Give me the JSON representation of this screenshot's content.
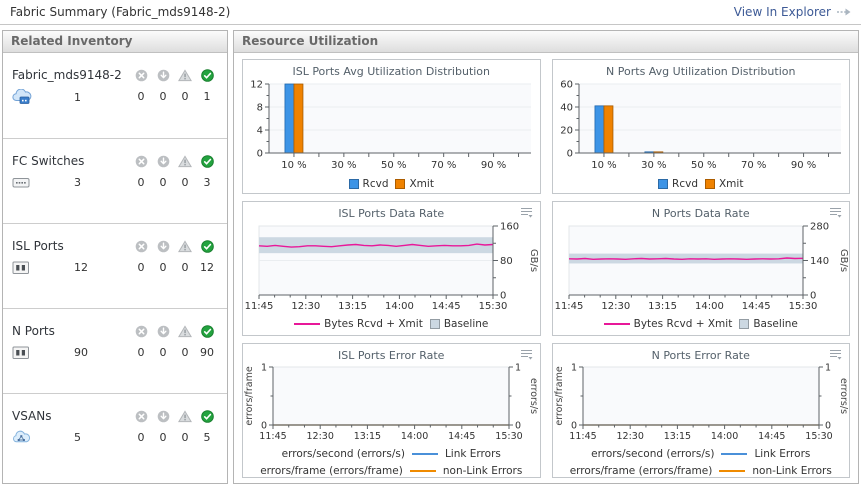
{
  "topbar": {
    "title": "Fabric Summary (Fabric_mds9148-2)",
    "link": "View In Explorer"
  },
  "sidebar": {
    "title": "Related Inventory",
    "status_icons": [
      "critical",
      "down",
      "warning",
      "ok"
    ],
    "items": [
      {
        "label": "Fabric_mds9148-2",
        "icon": "fabric-cloud-icon",
        "count": "1",
        "statuses": [
          "0",
          "0",
          "0",
          "1"
        ]
      },
      {
        "label": "FC Switches",
        "icon": "switch-icon",
        "count": "3",
        "statuses": [
          "0",
          "0",
          "0",
          "3"
        ]
      },
      {
        "label": "ISL Ports",
        "icon": "port-icon",
        "count": "12",
        "statuses": [
          "0",
          "0",
          "0",
          "12"
        ]
      },
      {
        "label": "N Ports",
        "icon": "port-icon",
        "count": "90",
        "statuses": [
          "0",
          "0",
          "0",
          "90"
        ]
      },
      {
        "label": "VSANs",
        "icon": "vsan-cloud-icon",
        "count": "5",
        "statuses": [
          "0",
          "0",
          "0",
          "5"
        ]
      }
    ]
  },
  "main": {
    "title": "Resource Utilization"
  },
  "colors": {
    "rcvd_blue": "#3d94e6",
    "xmit_orange": "#ef8200",
    "bytes_line": "#e81899",
    "baseline_band": "#ccd8e2",
    "link_errors_blue": "#4a90d9",
    "non_link_errors_orange": "#f08b00"
  },
  "chart_data": [
    {
      "type": "bar",
      "title": "ISL Ports Avg Utilization Distribution",
      "xmax": 105,
      "x_ticks": [
        10,
        20,
        30,
        40,
        50,
        60,
        70,
        80,
        90,
        100
      ],
      "x_labels": [
        {
          "x": 10,
          "t": "10 %"
        },
        {
          "x": 30,
          "t": "30 %"
        },
        {
          "x": 50,
          "t": "50 %"
        },
        {
          "x": 70,
          "t": "70 %"
        },
        {
          "x": 90,
          "t": "90 %"
        }
      ],
      "ylim": [
        0,
        12
      ],
      "y_ticks": [
        0,
        4,
        8,
        12
      ],
      "bar_x": [
        10
      ],
      "series": [
        {
          "name": "Rcvd",
          "color": "#3d94e6",
          "values": [
            12
          ]
        },
        {
          "name": "Xmit",
          "color": "#ef8200",
          "values": [
            12
          ]
        }
      ],
      "legend": [
        {
          "label": "Rcvd",
          "swatch": "box",
          "color": "#3d94e6"
        },
        {
          "label": "Xmit",
          "swatch": "box",
          "color": "#ef8200"
        }
      ]
    },
    {
      "type": "bar",
      "title": "N Ports Avg Utilization Distribution",
      "xmax": 105,
      "x_ticks": [
        10,
        20,
        30,
        40,
        50,
        60,
        70,
        80,
        90,
        100
      ],
      "x_labels": [
        {
          "x": 10,
          "t": "10 %"
        },
        {
          "x": 30,
          "t": "30 %"
        },
        {
          "x": 50,
          "t": "50 %"
        },
        {
          "x": 70,
          "t": "70 %"
        },
        {
          "x": 90,
          "t": "90 %"
        }
      ],
      "ylim": [
        0,
        60
      ],
      "y_ticks": [
        0,
        20,
        40,
        60
      ],
      "bar_x": [
        10,
        30
      ],
      "series": [
        {
          "name": "Rcvd",
          "color": "#3d94e6",
          "values": [
            41,
            1
          ]
        },
        {
          "name": "Xmit",
          "color": "#ef8200",
          "values": [
            41,
            1
          ]
        }
      ],
      "legend": [
        {
          "label": "Rcvd",
          "swatch": "box",
          "color": "#3d94e6"
        },
        {
          "label": "Xmit",
          "swatch": "box",
          "color": "#ef8200"
        }
      ]
    },
    {
      "type": "line",
      "title": "ISL Ports Data Rate",
      "unit": "GB/s",
      "x_labels": [
        "11:45",
        "12:30",
        "13:15",
        "14:00",
        "14:45",
        "15:30"
      ],
      "ylim": [
        0,
        160
      ],
      "y_ticks": [
        0,
        80,
        160
      ],
      "baseline": {
        "low": 97,
        "high": 134
      },
      "series": [
        {
          "name": "Bytes Rcvd + Xmit",
          "color": "#e81899",
          "values": [
            114,
            113,
            115,
            113,
            111,
            112,
            114,
            114,
            113,
            112,
            114,
            116,
            117,
            115,
            114,
            116,
            115,
            113,
            115,
            117,
            115,
            113,
            114,
            115,
            114,
            114,
            115,
            118,
            116,
            117
          ]
        }
      ],
      "legend": [
        {
          "label": "Bytes Rcvd + Xmit",
          "swatch": "line",
          "color": "#e81899"
        },
        {
          "label": "Baseline",
          "swatch": "box",
          "color": "#ccd8e2"
        }
      ]
    },
    {
      "type": "line",
      "title": "N Ports Data Rate",
      "unit": "GB/s",
      "x_labels": [
        "11:45",
        "12:30",
        "13:15",
        "14:00",
        "14:45",
        "15:30"
      ],
      "ylim": [
        0,
        280
      ],
      "y_ticks": [
        0,
        140,
        280
      ],
      "baseline": {
        "low": 128,
        "high": 168
      },
      "series": [
        {
          "name": "Bytes Rcvd + Xmit",
          "color": "#e81899",
          "values": [
            147,
            146,
            148,
            145,
            146,
            147,
            146,
            145,
            147,
            148,
            146,
            147,
            148,
            146,
            145,
            147,
            146,
            147,
            145,
            146,
            147,
            146,
            145,
            146,
            147,
            146,
            147,
            150,
            148,
            149
          ]
        }
      ],
      "legend": [
        {
          "label": "Bytes Rcvd + Xmit",
          "swatch": "line",
          "color": "#e81899"
        },
        {
          "label": "Baseline",
          "swatch": "box",
          "color": "#ccd8e2"
        }
      ]
    },
    {
      "type": "error-line",
      "title": "ISL Ports Error Rate",
      "left_unit": "errors/frame",
      "right_unit": "errors/s",
      "x_labels": [
        "11:45",
        "12:30",
        "13:15",
        "14:00",
        "14:45",
        "15:30"
      ],
      "ylim": [
        0,
        1
      ],
      "y_ticks": [
        0,
        1
      ],
      "series": [
        {
          "name": "Link Errors",
          "color": "#4a90d9",
          "values": [
            0,
            0,
            0,
            0,
            0,
            0,
            0,
            0,
            0,
            0,
            0,
            0,
            0,
            0,
            0,
            0,
            0,
            0,
            0,
            0,
            0,
            0,
            0,
            0,
            0,
            0,
            0,
            0,
            0,
            0
          ]
        },
        {
          "name": "non-Link Errors",
          "color": "#f08b00",
          "values": [
            0,
            0,
            0,
            0,
            0,
            0,
            0,
            0,
            0,
            0,
            0,
            0,
            0,
            0,
            0,
            0,
            0,
            0,
            0,
            0,
            0,
            0,
            0,
            0,
            0,
            0,
            0,
            0,
            0,
            0
          ]
        }
      ],
      "legend_rows": [
        {
          "prefix": "errors/second (errors/s)",
          "label": "Link Errors",
          "color": "#4a90d9"
        },
        {
          "prefix": "errors/frame (errors/frame)",
          "label": "non-Link Errors",
          "color": "#f08b00"
        }
      ]
    },
    {
      "type": "error-line",
      "title": "N Ports Error Rate",
      "left_unit": "errors/frame",
      "right_unit": "errors/s",
      "x_labels": [
        "11:45",
        "12:30",
        "13:15",
        "14:00",
        "14:45",
        "15:30"
      ],
      "ylim": [
        0,
        1
      ],
      "y_ticks": [
        0,
        1
      ],
      "series": [
        {
          "name": "Link Errors",
          "color": "#4a90d9",
          "values": [
            0,
            0,
            0,
            0,
            0,
            0,
            0,
            0,
            0,
            0,
            0,
            0,
            0,
            0,
            0,
            0,
            0,
            0,
            0,
            0,
            0,
            0,
            0,
            0,
            0,
            0,
            0,
            0,
            0,
            0
          ]
        },
        {
          "name": "non-Link Errors",
          "color": "#f08b00",
          "values": [
            0,
            0,
            0,
            0,
            0,
            0,
            0,
            0,
            0,
            0,
            0,
            0,
            0,
            0,
            0,
            0,
            0,
            0,
            0,
            0,
            0,
            0,
            0,
            0,
            0,
            0,
            0,
            0,
            0,
            0
          ]
        }
      ],
      "legend_rows": [
        {
          "prefix": "errors/second (errors/s)",
          "label": "Link Errors",
          "color": "#4a90d9"
        },
        {
          "prefix": "errors/frame (errors/frame)",
          "label": "non-Link Errors",
          "color": "#f08b00"
        }
      ]
    }
  ]
}
